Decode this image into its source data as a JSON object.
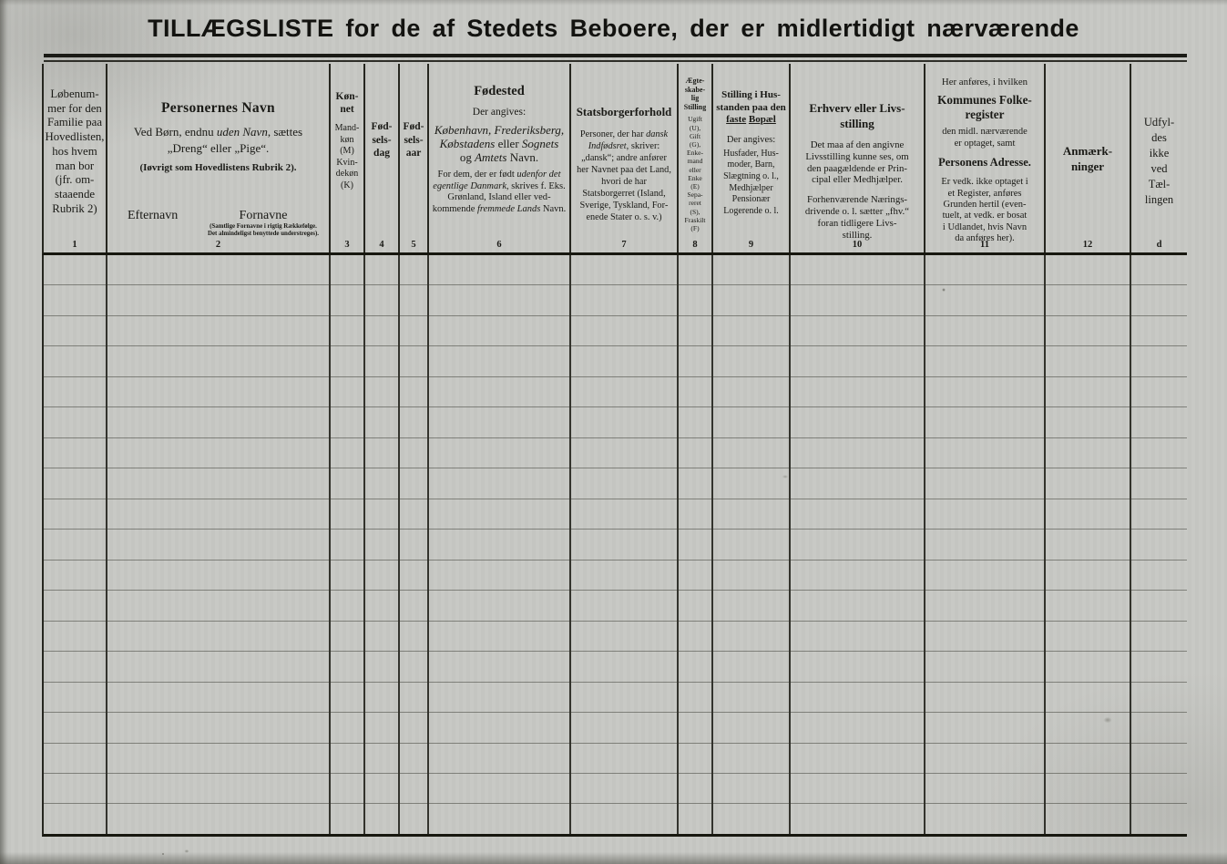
{
  "colors": {
    "paper": "#c7c8c4",
    "ink": "#1a1a16",
    "faint_line": "#6f6f66"
  },
  "title": "TILLÆGSLISTE for de af Stedets Beboere, der er midlertidigt nærværende",
  "table": {
    "body_row_count": 19,
    "c1": {
      "number": "1",
      "text": [
        "Løbenum-",
        "mer for den",
        "Familie paa",
        "Hovedlisten,",
        "hos hvem",
        "man bor",
        "(jfr. om-",
        "staaende",
        "Rubrik 2)"
      ]
    },
    "c2": {
      "number": "2",
      "title": "Personernes Navn",
      "line1_pre": "Ved Børn, endnu ",
      "line1_em": "uden Navn",
      "line1_post": ", sættes",
      "line2": "„Dreng“ eller „Pige“.",
      "line3": "(Iøvrigt som Hovedlistens Rubrik 2).",
      "efternavn_label": "Efternavn",
      "fornavne_label": "Fornavne",
      "fornavne_note": "(Samtlige Fornavne i rigtig Rækkefølge. Det almindeligst benyttede understreges)."
    },
    "c3": {
      "number": "3",
      "title": [
        "Køn-",
        "net"
      ],
      "text": [
        "Mand-",
        "køn",
        "(M)",
        "Kvin-",
        "dekøn",
        "(K)"
      ]
    },
    "c4": {
      "number": "4",
      "title": [
        "Fød-",
        "sels-",
        "dag"
      ]
    },
    "c5": {
      "number": "5",
      "title": [
        "Fød-",
        "sels-",
        "aar"
      ]
    },
    "c6": {
      "number": "6",
      "title": "Fødested",
      "sub": "Der angives:",
      "p1_em1": "København, Frederiks­berg, Købstadens",
      "p1_t1": " eller ",
      "p1_em2": "Sognets",
      "p1_t2": " og ",
      "p1_em3": "Amtets",
      "p1_t3": " Navn.",
      "p2_t1": "For dem, der er født ",
      "p2_em1": "uden­for det egentlige Danmark",
      "p2_t2": ", skrives f. Eks. Grønland, Island eller ved­kommende ",
      "p2_em2": "fremmede Lands",
      "p2_t3": " Navn."
    },
    "c7": {
      "number": "7",
      "title": "Statsborgerforhold",
      "p_t1": "Personer, der har ",
      "p_em1": "dansk Indfødsret",
      "p_t2": ", skriver: „dansk“; andre anfører her Navnet paa det Land, hvori de har Statsborgerret (Island, Sverige, Tyskland, For­enede Stater o. s. v.)"
    },
    "c8": {
      "number": "8",
      "title": [
        "Ægte-",
        "skabe-",
        "lig",
        "Stilling"
      ],
      "text": [
        "Ugift",
        "(U),",
        "Gift",
        "(G),",
        "Enke-",
        "mand",
        "eller",
        "Enke",
        "(E)",
        "Sepa-",
        "reret",
        "(S),",
        "Fraskilt",
        "(F)"
      ]
    },
    "c9": {
      "number": "9",
      "title_t1": "Stilling i Hus­standen paa den ",
      "title_u1": "faste",
      "title_sp": " ",
      "title_u2": "Bopæl",
      "sub": "Der angives:",
      "text": [
        "Husfader, Hus-",
        "moder, Barn,",
        "Slægtning o. l.,",
        "Medhjælper",
        "Pensionær",
        "Logerende o. l."
      ]
    },
    "c10": {
      "number": "10",
      "title": "Erhverv eller Livs­stilling",
      "p1": [
        "Det maa af den angivne",
        "Livsstilling kunne ses, om",
        "den paagældende er Prin-",
        "cipal eller Medhjælper."
      ],
      "p2": [
        "Forhenværende Nærings-",
        "drivende o. l. sætter „fhv.“",
        "foran tidligere Livs-",
        "stilling."
      ]
    },
    "c11": {
      "number": "11",
      "pre": "Her anføres, i hvilken",
      "title1": [
        "Kommunes Folke-",
        "register"
      ],
      "mid": [
        "den midl. nærværende",
        "er optaget, samt"
      ],
      "title2": "Personens Adresse.",
      "post": [
        "Er vedk. ikke optaget i",
        "et Register, anføres",
        "Grunden hertil (even-",
        "tuelt, at vedk. er bosat",
        "i Udlandet, hvis Navn",
        "da anføres her)."
      ]
    },
    "c12": {
      "number": "12",
      "title": [
        "Anmærk-",
        "ninger"
      ]
    },
    "c13": {
      "number": "d",
      "text": [
        "Udfyl-",
        "des",
        "ikke",
        "ved",
        "Tæl-",
        "lingen"
      ]
    }
  }
}
